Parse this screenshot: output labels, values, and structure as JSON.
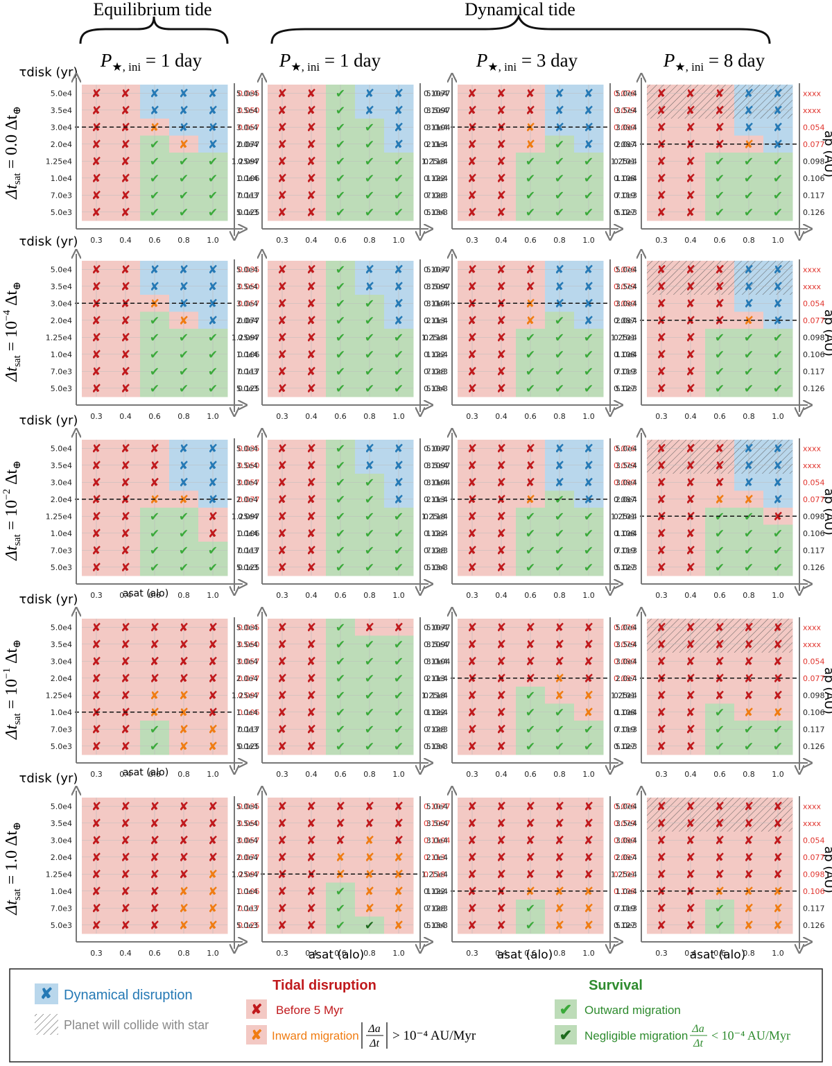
{
  "header": {
    "group_equilibrium": "Equilibrium tide",
    "group_dynamical": "Dynamical tide"
  },
  "columns": [
    {
      "prefix": "P",
      "sub": "★, ini",
      "suffix": " = 1 day"
    },
    {
      "prefix": "P",
      "sub": "★, ini",
      "suffix": " = 1 day"
    },
    {
      "prefix": "P",
      "sub": "★, ini",
      "suffix": " = 3 day"
    },
    {
      "prefix": "P",
      "sub": "★, ini",
      "suffix": " = 8 day"
    }
  ],
  "rows": [
    {
      "label": "Δt",
      "sub": "sat",
      "value": " = 0.0  Δt",
      "exp": "",
      "earth": "⊕"
    },
    {
      "label": "Δt",
      "sub": "sat",
      "value": " = 10",
      "exp": "−4",
      "after": "  Δt",
      "earth": "⊕"
    },
    {
      "label": "Δt",
      "sub": "sat",
      "value": " = 10",
      "exp": "−2",
      "after": "  Δt",
      "earth": "⊕"
    },
    {
      "label": "Δt",
      "sub": "sat",
      "value": " = 10",
      "exp": "−1",
      "after": "  Δt",
      "earth": "⊕"
    },
    {
      "label": "Δt",
      "sub": "sat",
      "value": " = 1.0  Δt",
      "exp": "",
      "earth": "⊕"
    }
  ],
  "axes": {
    "y_label": "τdisk (yr)",
    "x_label": "asat (alo)",
    "right_label": "ap (AU)"
  },
  "legend": {
    "dyn_title": "Dynamical disruption",
    "collide": "Planet will collide with star",
    "tidal_title": "Tidal disruption",
    "before5": "Before 5 Myr",
    "inward": "Inward migration",
    "inward_cond": "> 10⁻⁴ AU/Myr",
    "surv_title": "Survival",
    "outward": "Outward migration",
    "negligible": "Negligible migration",
    "negl_cond": "< 10⁻⁴ AU/Myr",
    "frac_num": "Δa",
    "frac_den": "Δt"
  },
  "colors": {
    "red": "#c0191c",
    "orange": "#f07c12",
    "blue": "#2579b5",
    "green": "#3aaa3a",
    "dgreen": "#1d6b1d",
    "bg_red": "#f3c9c4",
    "bg_blue": "#b9d7ec",
    "bg_green": "#bddcb8",
    "axis": "#777777",
    "ap_red": "#e0332c"
  },
  "chart_data": {
    "type": "heatmap",
    "x": [
      0.3,
      0.4,
      0.6,
      0.8,
      1.0
    ],
    "y": [
      "5.0e4",
      "3.5e4",
      "3.0e4",
      "2.0e4",
      "1.25e4",
      "1.0e4",
      "7.0e3",
      "5.0e3"
    ],
    "codes": {
      "r": "Before 5 Myr",
      "o": "Inward migration",
      "b": "Dynamical disruption",
      "g": "Outward migration",
      "n": "Negligible migration"
    },
    "ap": [
      [
        "0.035",
        "0.050",
        "0.057",
        "0.077",
        "0.097",
        "0.106",
        "0.117",
        "0.125"
      ],
      [
        "0.1077",
        "0.1097",
        "0.1104",
        "0.113",
        "0.118",
        "0.122",
        "0.128",
        "0.134"
      ],
      [
        "0.076",
        "0.079",
        "0.080",
        "0.087",
        "0.101",
        "0.108",
        "0.119",
        "0.127"
      ],
      [
        "xxxx",
        "xxxx",
        "0.054",
        "0.077",
        "0.098",
        "0.106",
        "0.117",
        "0.126"
      ]
    ],
    "panels": [
      [
        {
          "cells": [
            "rrbbb",
            "rrbbb",
            "rrobb",
            "rrgob",
            "rrggg",
            "rrggg",
            "rrggg",
            "rrggg"
          ],
          "ap_red": 3,
          "dash": 2.5,
          "hatch": 0
        },
        {
          "cells": [
            "rrgbb",
            "rrgbb",
            "rrggb",
            "rrggb",
            "rrggg",
            "rrggg",
            "rrggg",
            "rrggg"
          ],
          "ap_red": 0,
          "dash": -1,
          "hatch": 0
        },
        {
          "cells": [
            "rrrbb",
            "rrrbb",
            "rrobb",
            "rrogb",
            "rrggg",
            "rrggg",
            "rrggg",
            "rrggg"
          ],
          "ap_red": 3,
          "dash": 2.5,
          "hatch": 0
        },
        {
          "cells": [
            "rrrbb",
            "rrrbb",
            "rrrbb",
            "rrrob",
            "rrggg",
            "rrggg",
            "rrggg",
            "rrggg"
          ],
          "ap_red": 4,
          "dash": 3.5,
          "hatch": 2
        }
      ],
      [
        {
          "cells": [
            "rrbbb",
            "rrbbb",
            "rrobb",
            "rrgob",
            "rrggg",
            "rrggg",
            "rrggg",
            "rrggg"
          ],
          "ap_red": 3,
          "dash": 2.5,
          "hatch": 0
        },
        {
          "cells": [
            "rrgbb",
            "rrgbb",
            "rrggb",
            "rrggb",
            "rrggg",
            "rrggg",
            "rrggg",
            "rrggg"
          ],
          "ap_red": 0,
          "dash": -1,
          "hatch": 0
        },
        {
          "cells": [
            "rrrbb",
            "rrrbb",
            "rrobb",
            "rrogb",
            "rrggg",
            "rrggg",
            "rrggg",
            "rrggg"
          ],
          "ap_red": 3,
          "dash": 2.5,
          "hatch": 0
        },
        {
          "cells": [
            "rrrbb",
            "rrrbb",
            "rrrbb",
            "rrrob",
            "rrggg",
            "rrggg",
            "rrggg",
            "rrggg"
          ],
          "ap_red": 4,
          "dash": 3.5,
          "hatch": 2
        }
      ],
      [
        {
          "cells": [
            "rrrbb",
            "rrrbb",
            "rrrbb",
            "rroob",
            "rrggr",
            "rrggr",
            "rrggg",
            "rrggg"
          ],
          "ap_red": 4,
          "dash": 3.5,
          "hatch": 0
        },
        {
          "cells": [
            "rrgbb",
            "rrgbb",
            "rrggb",
            "rrggb",
            "rrggg",
            "rrggg",
            "rrggg",
            "rrggg"
          ],
          "ap_red": 0,
          "dash": -1,
          "hatch": 0
        },
        {
          "cells": [
            "rrrbb",
            "rrrbb",
            "rrrbb",
            "rrogb",
            "rrggg",
            "rrggg",
            "rrggg",
            "rrggg"
          ],
          "ap_red": 3,
          "dash": 3.5,
          "hatch": 0
        },
        {
          "cells": [
            "rrrbb",
            "rrrbb",
            "rrrbb",
            "rroob",
            "rrggr",
            "rrggg",
            "rrggg",
            "rrggg"
          ],
          "ap_red": 4,
          "dash": 4.5,
          "hatch": 2
        }
      ],
      [
        {
          "cells": [
            "rrrrr",
            "rrrrr",
            "rrrrr",
            "rrrrr",
            "rroor",
            "rroor",
            "rrgoo",
            "rrgoo"
          ],
          "ap_red": 6,
          "dash": 5.5,
          "hatch": 0
        },
        {
          "cells": [
            "rrgrr",
            "rrggg",
            "rrggg",
            "rrggg",
            "rrggg",
            "rrggg",
            "rrggg",
            "rrggg"
          ],
          "ap_red": 0,
          "dash": -1,
          "hatch": 0
        },
        {
          "cells": [
            "rrrrr",
            "rrrrr",
            "rrrrr",
            "rrror",
            "rrgoo",
            "rrggo",
            "rrggg",
            "rrggg"
          ],
          "ap_red": 4,
          "dash": 3.5,
          "hatch": 0
        },
        {
          "cells": [
            "rrrrr",
            "rrrrr",
            "rrrrr",
            "rrrrr",
            "rrrrr",
            "rrgoo",
            "rrggg",
            "rrggg"
          ],
          "ap_red": 4,
          "dash": 3.5,
          "hatch": 2
        }
      ],
      [
        {
          "cells": [
            "rrrrr",
            "rrrrr",
            "rrrrr",
            "rrrrr",
            "rrrro",
            "rrroo",
            "rrroo",
            "rrroo"
          ],
          "ap_red": 8,
          "dash": -1,
          "hatch": 0
        },
        {
          "cells": [
            "rrrrr",
            "rrrrr",
            "rrror",
            "rrooo",
            "rrooo",
            "rrgoo",
            "rrgoo",
            "rrgno"
          ],
          "ap_red": 5,
          "dash": 4.5,
          "hatch": 0
        },
        {
          "cells": [
            "rrrrr",
            "rrrrr",
            "rrrrr",
            "rrrrr",
            "rrrrr",
            "rrooo",
            "rrgoo",
            "rrgoo"
          ],
          "ap_red": 6,
          "dash": 5.5,
          "hatch": 0
        },
        {
          "cells": [
            "rrrrr",
            "rrrrr",
            "rrrrr",
            "rrrrr",
            "rrrrr",
            "rrooo",
            "rrgoo",
            "rrgoo"
          ],
          "ap_red": 6,
          "dash": 5.5,
          "hatch": 2
        }
      ]
    ]
  }
}
